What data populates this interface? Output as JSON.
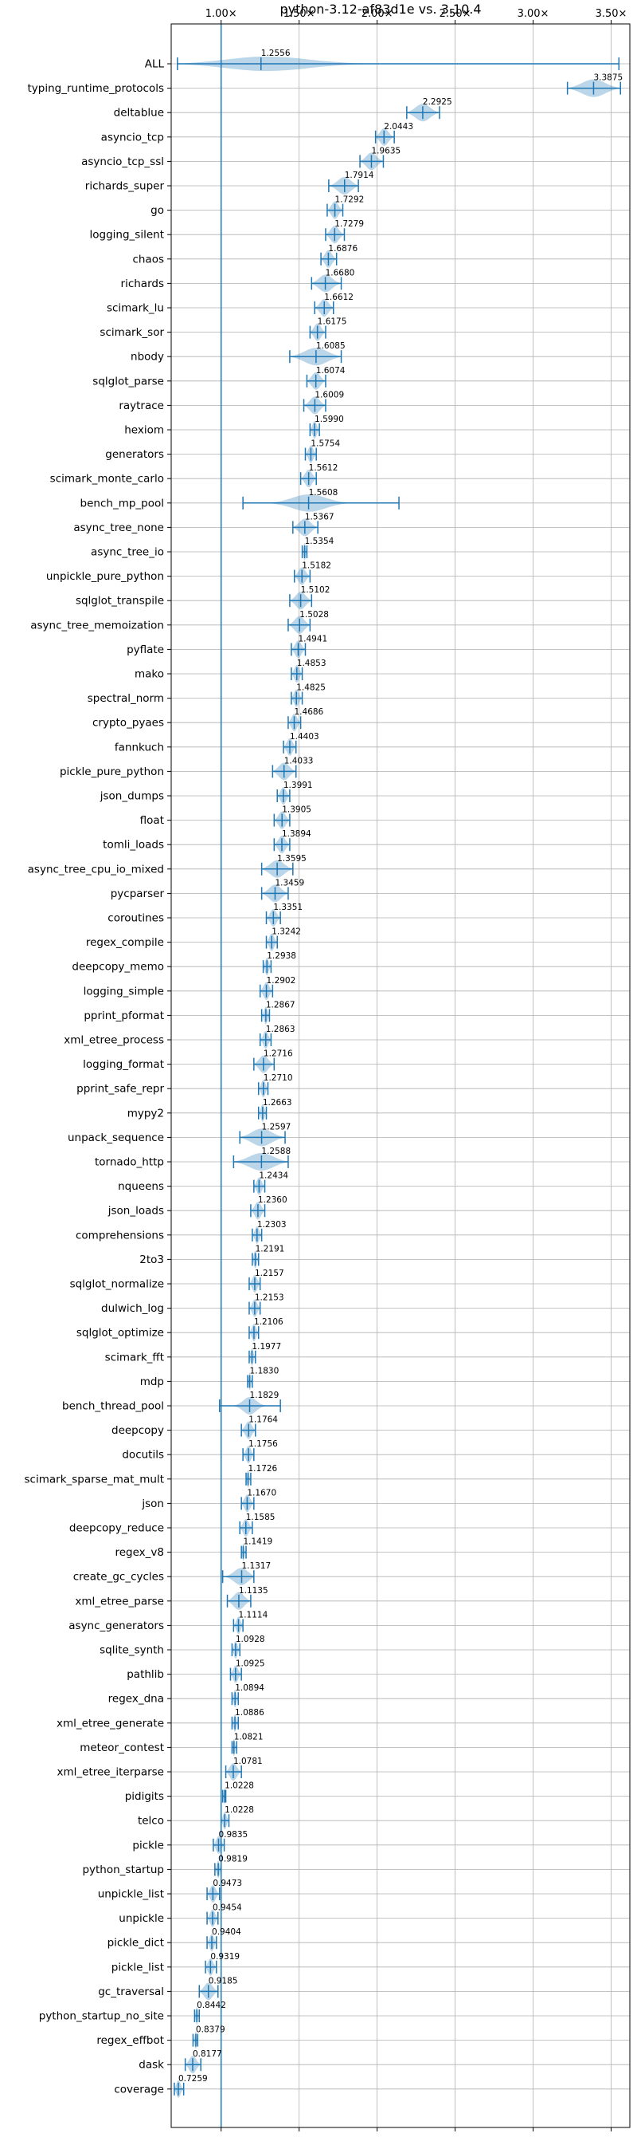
{
  "chart_data": {
    "type": "violin",
    "title": "python-3.12-af83d1e vs. 3.10.4",
    "xlim": [
      0.68,
      3.62
    ],
    "xticks": [
      1.0,
      1.5,
      2.0,
      2.5,
      3.0,
      3.5
    ],
    "xtick_labels": [
      "1.00×",
      "1.50×",
      "2.00×",
      "2.50×",
      "3.00×",
      "3.50×"
    ],
    "reference_line": 1.0,
    "grid": true,
    "colors": {
      "accent": "#1f77b4",
      "grid": "#b0b0b0"
    },
    "benchmarks": [
      {
        "name": "ALL",
        "value": 1.2556,
        "label": "1.2556",
        "min": 0.72,
        "max": 3.55,
        "spread": 0.4
      },
      {
        "name": "typing_runtime_protocols",
        "value": 3.3875,
        "label": "3.3875",
        "min": 3.22,
        "max": 3.56
      },
      {
        "name": "deltablue",
        "value": 2.2925,
        "label": "2.2925",
        "min": 2.19,
        "max": 2.4
      },
      {
        "name": "asyncio_tcp",
        "value": 2.0443,
        "label": "2.0443",
        "min": 1.99,
        "max": 2.11
      },
      {
        "name": "asyncio_tcp_ssl",
        "value": 1.9635,
        "label": "1.9635",
        "min": 1.89,
        "max": 2.04
      },
      {
        "name": "richards_super",
        "value": 1.7914,
        "label": "1.7914",
        "min": 1.69,
        "max": 1.88
      },
      {
        "name": "go",
        "value": 1.7292,
        "label": "1.7292",
        "min": 1.68,
        "max": 1.78
      },
      {
        "name": "logging_silent",
        "value": 1.7279,
        "label": "1.7279",
        "min": 1.67,
        "max": 1.79
      },
      {
        "name": "chaos",
        "value": 1.6876,
        "label": "1.6876",
        "min": 1.64,
        "max": 1.74
      },
      {
        "name": "richards",
        "value": 1.668,
        "label": "1.6680",
        "min": 1.58,
        "max": 1.77
      },
      {
        "name": "scimark_lu",
        "value": 1.6612,
        "label": "1.6612",
        "min": 1.6,
        "max": 1.72
      },
      {
        "name": "scimark_sor",
        "value": 1.6175,
        "label": "1.6175",
        "min": 1.57,
        "max": 1.67
      },
      {
        "name": "nbody",
        "value": 1.6085,
        "label": "1.6085",
        "min": 1.44,
        "max": 1.77
      },
      {
        "name": "sqlglot_parse",
        "value": 1.6074,
        "label": "1.6074",
        "min": 1.55,
        "max": 1.67
      },
      {
        "name": "raytrace",
        "value": 1.6009,
        "label": "1.6009",
        "min": 1.53,
        "max": 1.67
      },
      {
        "name": "hexiom",
        "value": 1.599,
        "label": "1.5990",
        "min": 1.57,
        "max": 1.63
      },
      {
        "name": "generators",
        "value": 1.5754,
        "label": "1.5754",
        "min": 1.54,
        "max": 1.61
      },
      {
        "name": "scimark_monte_carlo",
        "value": 1.5612,
        "label": "1.5612",
        "min": 1.51,
        "max": 1.61
      },
      {
        "name": "bench_mp_pool",
        "value": 1.5608,
        "label": "1.5608",
        "min": 1.14,
        "max": 2.14,
        "spread": 0.45
      },
      {
        "name": "async_tree_none",
        "value": 1.5367,
        "label": "1.5367",
        "min": 1.46,
        "max": 1.62
      },
      {
        "name": "async_tree_io",
        "value": 1.5354,
        "label": "1.5354",
        "min": 1.52,
        "max": 1.55
      },
      {
        "name": "unpickle_pure_python",
        "value": 1.5182,
        "label": "1.5182",
        "min": 1.47,
        "max": 1.57
      },
      {
        "name": "sqlglot_transpile",
        "value": 1.5102,
        "label": "1.5102",
        "min": 1.44,
        "max": 1.58
      },
      {
        "name": "async_tree_memoization",
        "value": 1.5028,
        "label": "1.5028",
        "min": 1.43,
        "max": 1.57
      },
      {
        "name": "pyflate",
        "value": 1.4941,
        "label": "1.4941",
        "min": 1.45,
        "max": 1.54
      },
      {
        "name": "mako",
        "value": 1.4853,
        "label": "1.4853",
        "min": 1.45,
        "max": 1.52
      },
      {
        "name": "spectral_norm",
        "value": 1.4825,
        "label": "1.4825",
        "min": 1.45,
        "max": 1.52
      },
      {
        "name": "crypto_pyaes",
        "value": 1.4686,
        "label": "1.4686",
        "min": 1.43,
        "max": 1.51
      },
      {
        "name": "fannkuch",
        "value": 1.4403,
        "label": "1.4403",
        "min": 1.4,
        "max": 1.48
      },
      {
        "name": "pickle_pure_python",
        "value": 1.4033,
        "label": "1.4033",
        "min": 1.33,
        "max": 1.48
      },
      {
        "name": "json_dumps",
        "value": 1.3991,
        "label": "1.3991",
        "min": 1.36,
        "max": 1.44
      },
      {
        "name": "float",
        "value": 1.3905,
        "label": "1.3905",
        "min": 1.34,
        "max": 1.44
      },
      {
        "name": "tomli_loads",
        "value": 1.3894,
        "label": "1.3894",
        "min": 1.34,
        "max": 1.44
      },
      {
        "name": "async_tree_cpu_io_mixed",
        "value": 1.3595,
        "label": "1.3595",
        "min": 1.26,
        "max": 1.46
      },
      {
        "name": "pycparser",
        "value": 1.3459,
        "label": "1.3459",
        "min": 1.26,
        "max": 1.43
      },
      {
        "name": "coroutines",
        "value": 1.3351,
        "label": "1.3351",
        "min": 1.29,
        "max": 1.38
      },
      {
        "name": "regex_compile",
        "value": 1.3242,
        "label": "1.3242",
        "min": 1.29,
        "max": 1.36
      },
      {
        "name": "deepcopy_memo",
        "value": 1.2938,
        "label": "1.2938",
        "min": 1.27,
        "max": 1.32
      },
      {
        "name": "logging_simple",
        "value": 1.2902,
        "label": "1.2902",
        "min": 1.25,
        "max": 1.33
      },
      {
        "name": "pprint_pformat",
        "value": 1.2867,
        "label": "1.2867",
        "min": 1.26,
        "max": 1.31
      },
      {
        "name": "xml_etree_process",
        "value": 1.2863,
        "label": "1.2863",
        "min": 1.25,
        "max": 1.32
      },
      {
        "name": "logging_format",
        "value": 1.2716,
        "label": "1.2716",
        "min": 1.21,
        "max": 1.34
      },
      {
        "name": "pprint_safe_repr",
        "value": 1.271,
        "label": "1.2710",
        "min": 1.24,
        "max": 1.3
      },
      {
        "name": "mypy2",
        "value": 1.2663,
        "label": "1.2663",
        "min": 1.24,
        "max": 1.29
      },
      {
        "name": "unpack_sequence",
        "value": 1.2597,
        "label": "1.2597",
        "min": 1.12,
        "max": 1.41
      },
      {
        "name": "tornado_http",
        "value": 1.2588,
        "label": "1.2588",
        "min": 1.08,
        "max": 1.43
      },
      {
        "name": "nqueens",
        "value": 1.2434,
        "label": "1.2434",
        "min": 1.21,
        "max": 1.28
      },
      {
        "name": "json_loads",
        "value": 1.236,
        "label": "1.2360",
        "min": 1.19,
        "max": 1.28
      },
      {
        "name": "comprehensions",
        "value": 1.2303,
        "label": "1.2303",
        "min": 1.2,
        "max": 1.26
      },
      {
        "name": "2to3",
        "value": 1.2191,
        "label": "1.2191",
        "min": 1.2,
        "max": 1.24
      },
      {
        "name": "sqlglot_normalize",
        "value": 1.2157,
        "label": "1.2157",
        "min": 1.18,
        "max": 1.25
      },
      {
        "name": "dulwich_log",
        "value": 1.2153,
        "label": "1.2153",
        "min": 1.18,
        "max": 1.25
      },
      {
        "name": "sqlglot_optimize",
        "value": 1.2106,
        "label": "1.2106",
        "min": 1.18,
        "max": 1.24
      },
      {
        "name": "scimark_fft",
        "value": 1.1977,
        "label": "1.1977",
        "min": 1.18,
        "max": 1.22
      },
      {
        "name": "mdp",
        "value": 1.183,
        "label": "1.1830",
        "min": 1.17,
        "max": 1.2
      },
      {
        "name": "bench_thread_pool",
        "value": 1.1829,
        "label": "1.1829",
        "min": 0.99,
        "max": 1.38,
        "spread": 0.45
      },
      {
        "name": "deepcopy",
        "value": 1.1764,
        "label": "1.1764",
        "min": 1.13,
        "max": 1.22
      },
      {
        "name": "docutils",
        "value": 1.1756,
        "label": "1.1756",
        "min": 1.14,
        "max": 1.21
      },
      {
        "name": "scimark_sparse_mat_mult",
        "value": 1.1726,
        "label": "1.1726",
        "min": 1.16,
        "max": 1.19
      },
      {
        "name": "json",
        "value": 1.167,
        "label": "1.1670",
        "min": 1.13,
        "max": 1.21
      },
      {
        "name": "deepcopy_reduce",
        "value": 1.1585,
        "label": "1.1585",
        "min": 1.12,
        "max": 1.2
      },
      {
        "name": "regex_v8",
        "value": 1.1419,
        "label": "1.1419",
        "min": 1.13,
        "max": 1.16
      },
      {
        "name": "create_gc_cycles",
        "value": 1.1317,
        "label": "1.1317",
        "min": 1.01,
        "max": 1.21
      },
      {
        "name": "xml_etree_parse",
        "value": 1.1135,
        "label": "1.1135",
        "min": 1.04,
        "max": 1.19
      },
      {
        "name": "async_generators",
        "value": 1.1114,
        "label": "1.1114",
        "min": 1.08,
        "max": 1.14
      },
      {
        "name": "sqlite_synth",
        "value": 1.0928,
        "label": "1.0928",
        "min": 1.07,
        "max": 1.12
      },
      {
        "name": "pathlib",
        "value": 1.0925,
        "label": "1.0925",
        "min": 1.06,
        "max": 1.13
      },
      {
        "name": "regex_dna",
        "value": 1.0894,
        "label": "1.0894",
        "min": 1.07,
        "max": 1.11
      },
      {
        "name": "xml_etree_generate",
        "value": 1.0886,
        "label": "1.0886",
        "min": 1.07,
        "max": 1.11
      },
      {
        "name": "meteor_contest",
        "value": 1.0821,
        "label": "1.0821",
        "min": 1.07,
        "max": 1.1
      },
      {
        "name": "xml_etree_iterparse",
        "value": 1.0781,
        "label": "1.0781",
        "min": 1.03,
        "max": 1.13
      },
      {
        "name": "pidigits",
        "value": 1.0228,
        "label": "1.0228",
        "min": 1.01,
        "max": 1.03
      },
      {
        "name": "telco",
        "value": 1.0228,
        "label": "1.0228",
        "min": 1.0,
        "max": 1.05
      },
      {
        "name": "pickle",
        "value": 0.9835,
        "label": "0.9835",
        "min": 0.95,
        "max": 1.02
      },
      {
        "name": "python_startup",
        "value": 0.9819,
        "label": "0.9819",
        "min": 0.96,
        "max": 1.0
      },
      {
        "name": "unpickle_list",
        "value": 0.9473,
        "label": "0.9473",
        "min": 0.91,
        "max": 0.99
      },
      {
        "name": "unpickle",
        "value": 0.9454,
        "label": "0.9454",
        "min": 0.91,
        "max": 0.98
      },
      {
        "name": "pickle_dict",
        "value": 0.9404,
        "label": "0.9404",
        "min": 0.91,
        "max": 0.97
      },
      {
        "name": "pickle_list",
        "value": 0.9319,
        "label": "0.9319",
        "min": 0.9,
        "max": 0.97
      },
      {
        "name": "gc_traversal",
        "value": 0.9185,
        "label": "0.9185",
        "min": 0.86,
        "max": 0.98
      },
      {
        "name": "python_startup_no_site",
        "value": 0.8442,
        "label": "0.8442",
        "min": 0.83,
        "max": 0.86
      },
      {
        "name": "regex_effbot",
        "value": 0.8379,
        "label": "0.8379",
        "min": 0.82,
        "max": 0.85
      },
      {
        "name": "dask",
        "value": 0.8177,
        "label": "0.8177",
        "min": 0.77,
        "max": 0.87
      },
      {
        "name": "coverage",
        "value": 0.7259,
        "label": "0.7259",
        "min": 0.7,
        "max": 0.76
      }
    ]
  }
}
